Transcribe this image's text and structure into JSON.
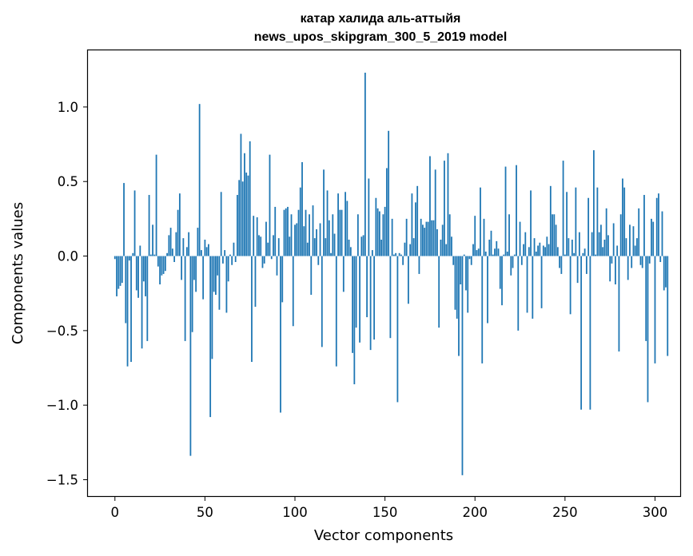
{
  "chart_data": {
    "type": "bar",
    "title": "катар халида аль-аттыйя",
    "subtitle": "news_upos_skipgram_300_5_2019 model",
    "xlabel": "Vector components",
    "ylabel": "Components values",
    "xlim": [
      -15,
      314
    ],
    "ylim": [
      -1.61,
      1.38
    ],
    "xticks": [
      0,
      50,
      100,
      150,
      200,
      250,
      300
    ],
    "yticks": [
      -1.5,
      -1.0,
      -0.5,
      0.0,
      0.5,
      1.0
    ],
    "ytick_labels": [
      "−1.5",
      "−1.0",
      "−0.5",
      "0.0",
      "0.5",
      "1.0"
    ],
    "bar_color": "#1f77b4",
    "grid": false,
    "legend": "none",
    "values": [
      -0.02,
      -0.27,
      -0.22,
      -0.2,
      -0.18,
      0.49,
      -0.45,
      -0.74,
      -0.03,
      -0.71,
      0.02,
      0.44,
      -0.23,
      -0.28,
      0.07,
      -0.62,
      -0.17,
      -0.27,
      -0.57,
      0.41,
      0.01,
      0.21,
      0.01,
      0.68,
      -0.07,
      -0.19,
      -0.13,
      -0.12,
      -0.1,
      0.02,
      0.14,
      0.19,
      0.05,
      -0.04,
      0.16,
      0.31,
      0.42,
      -0.16,
      0.12,
      -0.57,
      0.06,
      0.16,
      -1.34,
      -0.51,
      -0.16,
      -0.24,
      0.19,
      1.02,
      0.04,
      -0.29,
      0.11,
      0.06,
      0.08,
      -1.08,
      -0.69,
      -0.24,
      -0.26,
      -0.13,
      -0.36,
      0.43,
      -0.05,
      0.04,
      -0.38,
      -0.17,
      0.01,
      -0.06,
      0.09,
      -0.04,
      0.41,
      0.51,
      0.82,
      0.5,
      0.69,
      0.56,
      0.54,
      0.77,
      -0.71,
      0.27,
      -0.34,
      0.26,
      0.14,
      0.13,
      -0.08,
      -0.05,
      0.23,
      0.09,
      0.68,
      -0.02,
      0.14,
      0.33,
      -0.13,
      0.12,
      -1.05,
      -0.31,
      0.31,
      0.32,
      0.33,
      0.13,
      0.28,
      -0.47,
      0.21,
      0.22,
      0.31,
      0.46,
      0.63,
      0.2,
      0.31,
      0.09,
      0.28,
      -0.26,
      0.34,
      0.12,
      0.18,
      -0.06,
      0.22,
      -0.61,
      0.58,
      0.12,
      0.44,
      0.24,
      0.02,
      0.28,
      0.15,
      -0.74,
      0.42,
      0.31,
      0.31,
      -0.24,
      0.43,
      0.37,
      0.11,
      0.06,
      -0.65,
      -0.86,
      -0.48,
      0.28,
      -0.58,
      0.13,
      0.14,
      1.23,
      -0.41,
      0.52,
      -0.63,
      0.04,
      -0.56,
      0.39,
      0.32,
      0.3,
      0.11,
      0.28,
      0.33,
      0.59,
      0.84,
      -0.55,
      0.25,
      0.01,
      0.02,
      -0.98,
      0.02,
      0.01,
      -0.06,
      0.09,
      0.25,
      -0.32,
      0.08,
      0.42,
      0.12,
      0.36,
      0.47,
      -0.12,
      0.25,
      0.21,
      0.19,
      0.23,
      0.23,
      0.67,
      0.24,
      0.24,
      0.58,
      0.18,
      -0.48,
      0.11,
      0.21,
      0.64,
      0.08,
      0.69,
      0.28,
      0.13,
      -0.06,
      -0.36,
      -0.42,
      -0.67,
      -0.19,
      -1.47,
      0.01,
      -0.23,
      -0.38,
      -0.02,
      -0.06,
      0.08,
      0.27,
      0.04,
      0.05,
      0.46,
      -0.72,
      0.25,
      0.03,
      -0.45,
      0.11,
      0.17,
      0.01,
      0.05,
      0.1,
      0.05,
      -0.22,
      -0.33,
      0.01,
      0.6,
      0.03,
      0.28,
      -0.13,
      -0.08,
      0.01,
      0.61,
      -0.5,
      0.23,
      -0.06,
      0.08,
      0.16,
      -0.38,
      0.06,
      0.44,
      -0.42,
      0.12,
      0.03,
      0.07,
      0.09,
      -0.35,
      0.07,
      0.06,
      0.13,
      0.08,
      0.47,
      0.28,
      0.28,
      0.21,
      0.06,
      -0.08,
      -0.12,
      0.64,
      0.01,
      0.43,
      0.12,
      -0.39,
      0.11,
      0.02,
      0.46,
      -0.18,
      0.16,
      -1.03,
      0.02,
      0.05,
      -0.12,
      0.39,
      -1.03,
      0.16,
      0.71,
      0.01,
      0.46,
      0.16,
      0.21,
      0.06,
      0.11,
      0.32,
      0.14,
      -0.17,
      -0.05,
      0.22,
      -0.19,
      0.07,
      -0.64,
      0.28,
      0.52,
      0.46,
      0.12,
      -0.16,
      0.21,
      -0.08,
      0.2,
      0.07,
      0.12,
      0.32,
      -0.06,
      -0.08,
      0.41,
      -0.57,
      -0.98,
      -0.05,
      0.25,
      0.23,
      -0.72,
      0.39,
      0.42,
      -0.04,
      0.3,
      -0.23,
      -0.21,
      -0.67
    ]
  }
}
